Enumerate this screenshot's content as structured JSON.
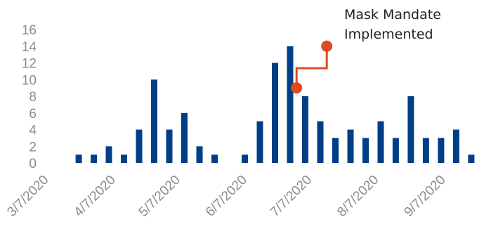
{
  "chart_data": {
    "type": "bar",
    "title": "",
    "xlabel": "",
    "ylabel": "",
    "ylim": [
      0,
      16
    ],
    "y_ticks": [
      "0",
      "2",
      "4",
      "6",
      "8",
      "10",
      "12",
      "14",
      "16"
    ],
    "x_tick_labels": [
      "3/7/2020",
      "4/7/2020",
      "5/7/2020",
      "6/7/2020",
      "7/7/2020",
      "8/7/2020",
      "9/7/2020"
    ],
    "values": [
      0,
      0,
      0,
      0,
      0,
      0,
      0,
      0,
      0,
      0,
      0,
      0,
      0,
      0,
      0,
      0,
      0,
      0,
      0,
      0,
      0,
      0,
      0,
      0,
      0,
      0,
      0,
      0,
      0,
      0,
      0,
      0,
      0,
      0,
      0,
      0,
      0,
      0,
      0,
      0,
      0,
      0,
      0,
      0,
      0,
      0,
      0,
      0,
      0,
      0,
      0,
      0,
      0,
      0,
      0,
      0,
      0,
      0,
      0,
      0,
      0,
      0,
      0,
      0,
      0,
      0,
      0,
      0,
      0,
      0,
      0,
      0,
      0,
      0,
      0,
      0,
      0,
      0,
      0,
      0,
      0,
      0,
      0,
      0,
      0,
      0,
      0,
      0,
      0,
      0,
      0,
      0,
      0,
      0,
      0,
      0,
      0,
      0,
      0,
      0,
      0,
      0,
      0,
      0,
      0,
      0,
      0,
      0,
      0,
      0,
      0,
      0,
      0,
      0,
      0,
      0,
      0,
      0,
      0,
      0,
      0,
      0,
      0,
      0,
      0,
      0,
      0,
      0,
      0,
      0,
      0,
      0,
      0,
      0,
      0,
      0,
      0,
      0,
      0,
      0,
      0,
      0,
      0,
      0,
      0,
      0,
      0,
      0,
      0,
      0,
      0,
      0,
      0,
      0,
      0,
      0,
      0,
      0,
      0,
      0,
      0,
      0,
      0,
      0,
      0,
      0,
      0,
      0,
      0,
      0,
      0,
      0,
      0,
      0,
      0,
      0,
      0,
      0,
      0,
      0,
      0,
      0,
      0,
      0,
      0,
      0,
      0,
      0,
      0,
      0,
      0,
      0,
      0,
      0,
      0,
      0,
      0,
      0,
      0,
      0,
      0,
      0,
      0,
      0,
      0,
      0,
      0,
      0,
      0,
      0,
      0,
      0,
      0,
      0,
      0,
      0,
      0,
      0,
      0,
      0,
      0,
      0,
      0,
      0,
      0
    ],
    "bars": [
      {
        "x": "3/22/2020",
        "value": 1
      },
      {
        "x": "3/29/2020",
        "value": 1
      },
      {
        "x": "4/5/2020",
        "value": 2
      },
      {
        "x": "4/12/2020",
        "value": 1
      },
      {
        "x": "4/19/2020",
        "value": 4
      },
      {
        "x": "4/26/2020",
        "value": 10
      },
      {
        "x": "5/3/2020",
        "value": 4
      },
      {
        "x": "5/10/2020",
        "value": 6
      },
      {
        "x": "5/17/2020",
        "value": 2
      },
      {
        "x": "5/24/2020",
        "value": 1
      },
      {
        "x": "6/7/2020",
        "value": 1
      },
      {
        "x": "6/14/2020",
        "value": 5
      },
      {
        "x": "6/21/2020",
        "value": 12
      },
      {
        "x": "6/28/2020",
        "value": 14
      },
      {
        "x": "7/5/2020",
        "value": 8
      },
      {
        "x": "7/12/2020",
        "value": 5
      },
      {
        "x": "7/19/2020",
        "value": 3
      },
      {
        "x": "7/26/2020",
        "value": 4
      },
      {
        "x": "8/2/2020",
        "value": 3
      },
      {
        "x": "8/9/2020",
        "value": 5
      },
      {
        "x": "8/16/2020",
        "value": 3
      },
      {
        "x": "8/23/2020",
        "value": 8
      },
      {
        "x": "8/30/2020",
        "value": 3
      },
      {
        "x": "9/6/2020",
        "value": 3
      },
      {
        "x": "9/13/2020",
        "value": 4
      },
      {
        "x": "9/20/2020",
        "value": 1
      }
    ],
    "annotation": {
      "text_line1": "Mask Mandate",
      "text_line2": "Implemented",
      "marker_start": {
        "x": "7/1/2020",
        "y": 9
      },
      "marker_end": {
        "x": "7/15/2020",
        "y": 14
      }
    },
    "grid": false,
    "legend": "none"
  },
  "colors": {
    "bar": "#003f87",
    "annotation": "#e04a1f",
    "tick": "#8c8c8c",
    "text": "#222222"
  }
}
